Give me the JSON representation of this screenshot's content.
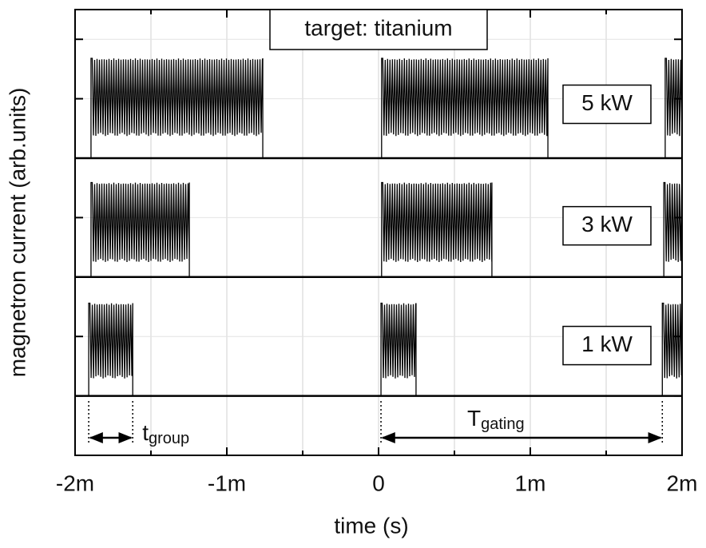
{
  "chart_data": {
    "type": "pulse-train",
    "x_label": "time (s)",
    "y_label": "magnetron current (arb.units)",
    "xlim": [
      -0.002,
      0.002
    ],
    "xticks": [
      {
        "value": -0.002,
        "label": "-2m"
      },
      {
        "value": -0.001,
        "label": "-1m"
      },
      0,
      {
        "value": 0.001,
        "label": "1m"
      },
      {
        "value": 0.002,
        "label": "2m"
      }
    ],
    "xminorticks": [
      -0.0015,
      -0.0005,
      0.0005,
      0.0015
    ],
    "ylim": [
      0,
      7.5
    ],
    "yticks": [
      1,
      2,
      3,
      4,
      5,
      6,
      7
    ],
    "grid": true,
    "annotation_box": "target: titanium",
    "annotations": [
      {
        "main": "t",
        "sub": "group"
      },
      {
        "main": "T",
        "sub": "gating"
      }
    ],
    "series": [
      {
        "name": "5 kW",
        "color": "#000000",
        "offset": 5,
        "peak": 1.68,
        "trough": 0.4,
        "starts": [
          -0.001895,
          2e-05,
          0.001889
        ],
        "ends": [
          -0.000763,
          0.001116,
          0.002
        ]
      },
      {
        "name": "3 kW",
        "color": "#000000",
        "offset": 3,
        "peak": 1.59,
        "trough": 0.28,
        "starts": [
          -0.001895,
          2e-05,
          0.00188
        ],
        "ends": [
          -0.001247,
          0.000747,
          0.002
        ]
      },
      {
        "name": "1 kW",
        "color": "#000000",
        "offset": 1,
        "peak": 1.56,
        "trough": 0.32,
        "starts": [
          -0.00191,
          1.6e-05,
          0.00187
        ],
        "ends": [
          -0.00162,
          0.000247,
          0.002
        ]
      }
    ]
  }
}
